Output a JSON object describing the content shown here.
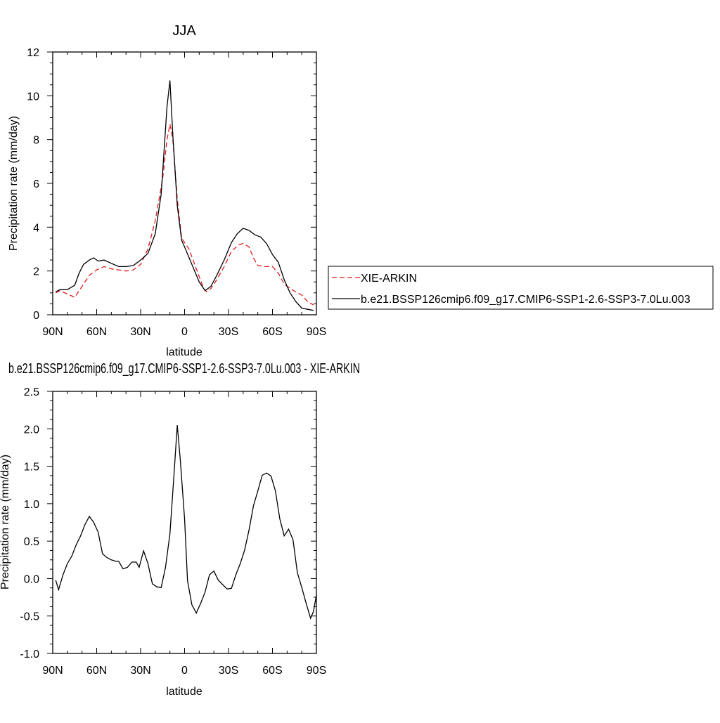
{
  "colors": {
    "obs": "#e31a1c",
    "model": "#000000",
    "frame": "#000000"
  },
  "legend": {
    "entries": [
      {
        "label": "XIE-ARKIN",
        "style": "dashed",
        "color": "#e31a1c"
      },
      {
        "label": "b.e21.BSSP126cmip6.f09_g17.CMIP6-SSP1-2.6-SSP3-7.0Lu.003",
        "style": "solid",
        "color": "#000000"
      }
    ]
  },
  "chart_data": [
    {
      "type": "line",
      "title": "JJA",
      "xlabel": "latitude",
      "ylabel": "Precipitation rate (mm/day)",
      "xlim": [
        90,
        -90
      ],
      "ylim": [
        0,
        12
      ],
      "grid": false,
      "legend_placement": "right",
      "x_ticks": [
        {
          "value": 90,
          "label": "90N"
        },
        {
          "value": 60,
          "label": "60N"
        },
        {
          "value": 30,
          "label": "30N"
        },
        {
          "value": 0,
          "label": "0"
        },
        {
          "value": -30,
          "label": "30S"
        },
        {
          "value": -60,
          "label": "60S"
        },
        {
          "value": -90,
          "label": "90S"
        }
      ],
      "y_ticks": [
        {
          "value": 0,
          "label": "0"
        },
        {
          "value": 2,
          "label": "2"
        },
        {
          "value": 4,
          "label": "4"
        },
        {
          "value": 6,
          "label": "6"
        },
        {
          "value": 8,
          "label": "8"
        },
        {
          "value": 10,
          "label": "10"
        },
        {
          "value": 12,
          "label": "12"
        }
      ],
      "series": [
        {
          "name": "XIE-ARKIN",
          "color": "#e31a1c",
          "style": "dashed",
          "points": [
            [
              88,
              1.0
            ],
            [
              85,
              1.1
            ],
            [
              80,
              0.95
            ],
            [
              75,
              0.8
            ],
            [
              70,
              1.3
            ],
            [
              65,
              1.8
            ],
            [
              60,
              2.05
            ],
            [
              55,
              2.2
            ],
            [
              50,
              2.1
            ],
            [
              45,
              2.05
            ],
            [
              40,
              2.0
            ],
            [
              35,
              2.05
            ],
            [
              30,
              2.3
            ],
            [
              25,
              3.0
            ],
            [
              20,
              4.3
            ],
            [
              15,
              6.2
            ],
            [
              12,
              8.0
            ],
            [
              10,
              8.7
            ],
            [
              8,
              8.0
            ],
            [
              5,
              5.3
            ],
            [
              2,
              3.5
            ],
            [
              0,
              3.3
            ],
            [
              -3,
              3.0
            ],
            [
              -8,
              2.1
            ],
            [
              -13,
              1.2
            ],
            [
              -15,
              1.05
            ],
            [
              -18,
              1.2
            ],
            [
              -22,
              1.6
            ],
            [
              -27,
              2.2
            ],
            [
              -32,
              2.9
            ],
            [
              -37,
              3.2
            ],
            [
              -40,
              3.25
            ],
            [
              -44,
              3.1
            ],
            [
              -47,
              2.6
            ],
            [
              -50,
              2.25
            ],
            [
              -55,
              2.2
            ],
            [
              -60,
              2.2
            ],
            [
              -64,
              1.9
            ],
            [
              -68,
              1.4
            ],
            [
              -72,
              1.2
            ],
            [
              -77,
              1.0
            ],
            [
              -80,
              0.9
            ],
            [
              -84,
              0.6
            ],
            [
              -88,
              0.45
            ]
          ]
        },
        {
          "name": "b.e21.BSSP126cmip6.f09_g17.CMIP6-SSP1-2.6-SSP3-7.0Lu.003",
          "color": "#000000",
          "style": "solid",
          "points": [
            [
              88,
              1.05
            ],
            [
              85,
              1.15
            ],
            [
              80,
              1.15
            ],
            [
              75,
              1.35
            ],
            [
              72,
              1.9
            ],
            [
              69,
              2.3
            ],
            [
              65,
              2.5
            ],
            [
              62,
              2.6
            ],
            [
              59,
              2.45
            ],
            [
              55,
              2.5
            ],
            [
              50,
              2.35
            ],
            [
              45,
              2.2
            ],
            [
              40,
              2.2
            ],
            [
              35,
              2.25
            ],
            [
              30,
              2.5
            ],
            [
              25,
              2.8
            ],
            [
              20,
              3.7
            ],
            [
              16,
              5.5
            ],
            [
              12,
              9.5
            ],
            [
              10,
              10.7
            ],
            [
              8,
              8.2
            ],
            [
              5,
              5.0
            ],
            [
              2,
              3.4
            ],
            [
              0,
              3.1
            ],
            [
              -5,
              2.3
            ],
            [
              -10,
              1.5
            ],
            [
              -14,
              1.1
            ],
            [
              -18,
              1.3
            ],
            [
              -22,
              1.8
            ],
            [
              -27,
              2.5
            ],
            [
              -32,
              3.3
            ],
            [
              -36,
              3.7
            ],
            [
              -40,
              3.95
            ],
            [
              -44,
              3.85
            ],
            [
              -48,
              3.65
            ],
            [
              -52,
              3.55
            ],
            [
              -56,
              3.25
            ],
            [
              -60,
              2.75
            ],
            [
              -64,
              2.4
            ],
            [
              -68,
              1.6
            ],
            [
              -72,
              1.0
            ],
            [
              -76,
              0.6
            ],
            [
              -80,
              0.3
            ],
            [
              -84,
              0.25
            ],
            [
              -88,
              0.2
            ]
          ]
        }
      ]
    },
    {
      "type": "line",
      "title": "b.e21.BSSP126cmip6.f09_g17.CMIP6-SSP1-2.6-SSP3-7.0Lu.003 - XIE-ARKIN",
      "xlabel": "latitude",
      "ylabel": "Precipitation rate (mm/day)",
      "xlim": [
        90,
        -90
      ],
      "ylim": [
        -1.0,
        2.5
      ],
      "grid": false,
      "x_ticks": [
        {
          "value": 90,
          "label": "90N"
        },
        {
          "value": 60,
          "label": "60N"
        },
        {
          "value": 30,
          "label": "30N"
        },
        {
          "value": 0,
          "label": "0"
        },
        {
          "value": -30,
          "label": "30S"
        },
        {
          "value": -60,
          "label": "60S"
        },
        {
          "value": -90,
          "label": "90S"
        }
      ],
      "y_ticks": [
        {
          "value": -1.0,
          "label": "-1.0"
        },
        {
          "value": -0.5,
          "label": "-0.5"
        },
        {
          "value": 0.0,
          "label": "0.0"
        },
        {
          "value": 0.5,
          "label": "0.5"
        },
        {
          "value": 1.0,
          "label": "1.0"
        },
        {
          "value": 1.5,
          "label": "1.5"
        },
        {
          "value": 2.0,
          "label": "2.0"
        },
        {
          "value": 2.5,
          "label": "2.5"
        }
      ],
      "series": [
        {
          "color": "#000000",
          "style": "solid",
          "points": [
            [
              88,
              -0.02
            ],
            [
              86,
              -0.15
            ],
            [
              83,
              0.05
            ],
            [
              80,
              0.2
            ],
            [
              77,
              0.3
            ],
            [
              74,
              0.45
            ],
            [
              71,
              0.57
            ],
            [
              68,
              0.72
            ],
            [
              65,
              0.83
            ],
            [
              62,
              0.75
            ],
            [
              59,
              0.62
            ],
            [
              56,
              0.33
            ],
            [
              53,
              0.28
            ],
            [
              50,
              0.25
            ],
            [
              47,
              0.23
            ],
            [
              45,
              0.23
            ],
            [
              42,
              0.13
            ],
            [
              39,
              0.15
            ],
            [
              36,
              0.22
            ],
            [
              33,
              0.22
            ],
            [
              31,
              0.15
            ],
            [
              28,
              0.37
            ],
            [
              25,
              0.2
            ],
            [
              22,
              -0.07
            ],
            [
              19,
              -0.11
            ],
            [
              16,
              -0.12
            ],
            [
              13,
              0.15
            ],
            [
              10,
              0.6
            ],
            [
              7,
              1.45
            ],
            [
              5,
              2.05
            ],
            [
              3,
              1.6
            ],
            [
              0,
              0.8
            ],
            [
              -2,
              -0.03
            ],
            [
              -5,
              -0.35
            ],
            [
              -8,
              -0.46
            ],
            [
              -11,
              -0.33
            ],
            [
              -14,
              -0.18
            ],
            [
              -17,
              0.05
            ],
            [
              -20,
              0.1
            ],
            [
              -23,
              -0.02
            ],
            [
              -26,
              -0.08
            ],
            [
              -29,
              -0.14
            ],
            [
              -32,
              -0.13
            ],
            [
              -35,
              0.05
            ],
            [
              -38,
              0.2
            ],
            [
              -41,
              0.38
            ],
            [
              -44,
              0.65
            ],
            [
              -47,
              0.97
            ],
            [
              -50,
              1.17
            ],
            [
              -53,
              1.38
            ],
            [
              -56,
              1.41
            ],
            [
              -59,
              1.37
            ],
            [
              -62,
              1.17
            ],
            [
              -65,
              0.8
            ],
            [
              -68,
              0.57
            ],
            [
              -71,
              0.66
            ],
            [
              -74,
              0.52
            ],
            [
              -77,
              0.08
            ],
            [
              -80,
              -0.12
            ],
            [
              -83,
              -0.33
            ],
            [
              -86,
              -0.53
            ],
            [
              -88,
              -0.44
            ],
            [
              -90,
              -0.22
            ],
            [
              -92,
              -0.24
            ]
          ]
        }
      ]
    }
  ]
}
